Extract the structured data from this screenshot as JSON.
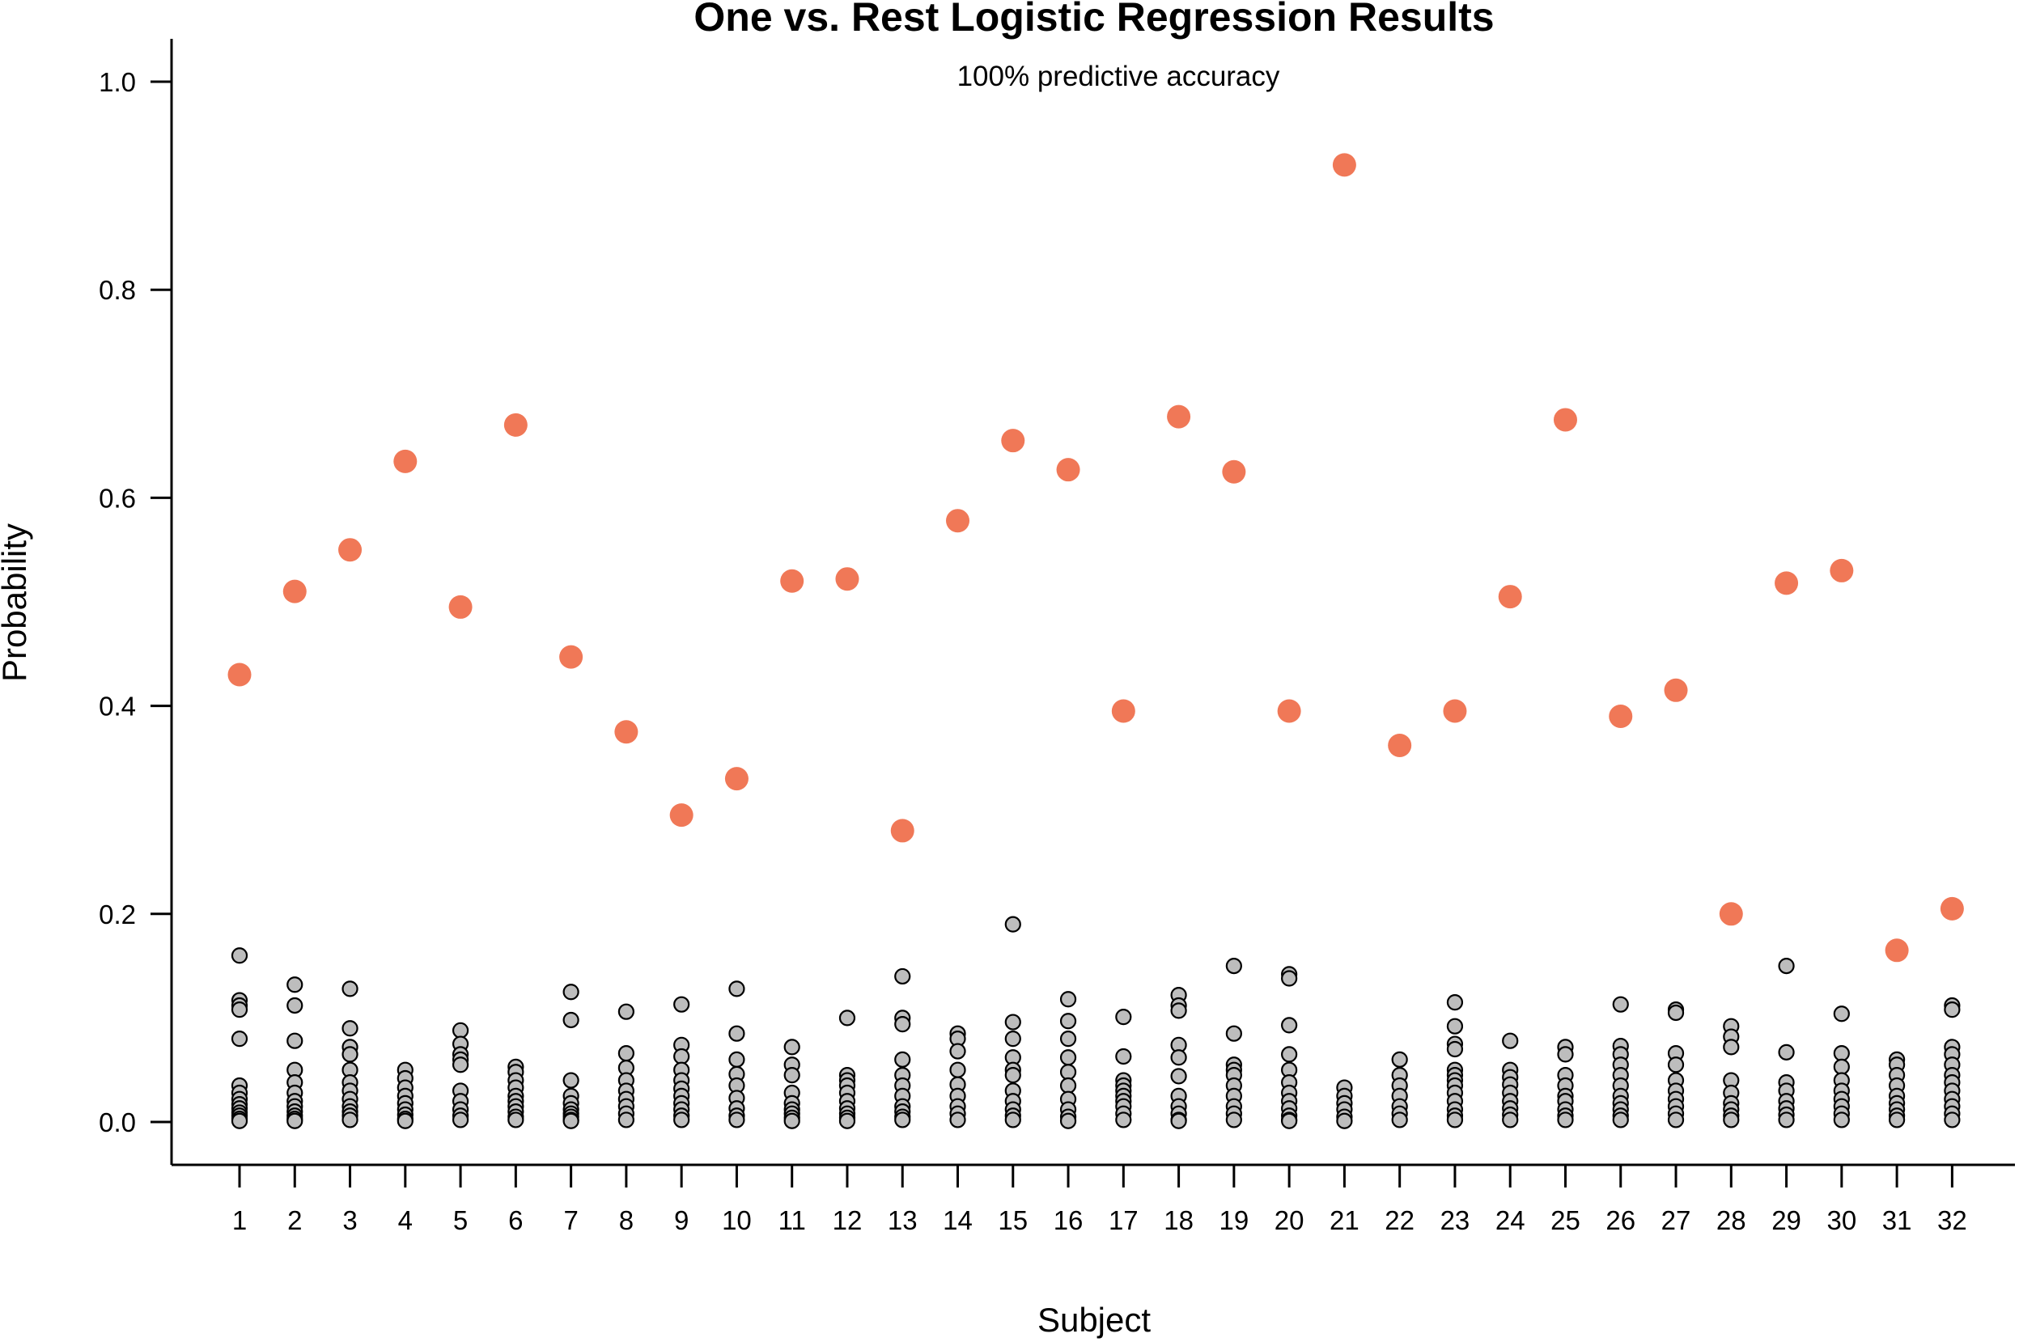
{
  "chart_data": {
    "type": "scatter",
    "title": "One vs. Rest Logistic Regression Results",
    "subtitle": "100% predictive accuracy",
    "xlabel": "Subject",
    "ylabel": "Probability",
    "ylim": [
      0,
      1.0
    ],
    "y_ticks": [
      "0.0",
      "0.2",
      "0.4",
      "0.6",
      "0.8",
      "1.0"
    ],
    "categories": [
      "1",
      "2",
      "3",
      "4",
      "5",
      "6",
      "7",
      "8",
      "9",
      "10",
      "11",
      "12",
      "13",
      "14",
      "15",
      "16",
      "17",
      "18",
      "19",
      "20",
      "21",
      "22",
      "23",
      "24",
      "25",
      "26",
      "27",
      "28",
      "29",
      "30",
      "31",
      "32"
    ],
    "grid": false,
    "legend": "none",
    "colors": {
      "correct_class": "#f07857",
      "other_classes": "#bdbdbd",
      "axis": "#000000"
    },
    "series": [
      {
        "values": [
          0.43,
          0.51,
          0.55,
          0.635,
          0.495,
          0.67,
          0.447,
          0.375,
          0.295,
          0.33,
          0.52,
          0.522,
          0.28,
          0.578,
          0.655,
          0.627,
          0.395,
          0.678,
          0.625,
          0.395,
          0.92,
          0.362,
          0.395,
          0.505,
          0.675,
          0.39,
          0.415,
          0.2,
          0.518,
          0.53,
          0.165,
          0.205
        ]
      },
      {
        "points": [
          [
            0.16,
            0.117,
            0.112,
            0.108,
            0.08,
            0.035,
            0.028,
            0.022,
            0.017,
            0.013,
            0.009,
            0.006,
            0.003,
            0.001
          ],
          [
            0.132,
            0.112,
            0.078,
            0.05,
            0.038,
            0.028,
            0.02,
            0.015,
            0.01,
            0.006,
            0.003,
            0.001
          ],
          [
            0.128,
            0.09,
            0.072,
            0.065,
            0.05,
            0.038,
            0.03,
            0.022,
            0.015,
            0.01,
            0.006,
            0.002
          ],
          [
            0.05,
            0.042,
            0.033,
            0.025,
            0.018,
            0.012,
            0.007,
            0.003,
            0.001
          ],
          [
            0.088,
            0.075,
            0.065,
            0.06,
            0.055,
            0.03,
            0.02,
            0.012,
            0.006,
            0.002
          ],
          [
            0.053,
            0.048,
            0.04,
            0.033,
            0.025,
            0.02,
            0.015,
            0.01,
            0.005,
            0.002
          ],
          [
            0.125,
            0.098,
            0.04,
            0.025,
            0.018,
            0.012,
            0.008,
            0.005,
            0.002,
            0.001
          ],
          [
            0.106,
            0.066,
            0.052,
            0.04,
            0.03,
            0.022,
            0.015,
            0.008,
            0.002
          ],
          [
            0.113,
            0.074,
            0.063,
            0.05,
            0.04,
            0.032,
            0.025,
            0.018,
            0.012,
            0.006,
            0.002
          ],
          [
            0.128,
            0.085,
            0.06,
            0.046,
            0.035,
            0.023,
            0.013,
            0.006,
            0.002
          ],
          [
            0.072,
            0.055,
            0.045,
            0.028,
            0.018,
            0.012,
            0.008,
            0.004,
            0.001
          ],
          [
            0.1,
            0.045,
            0.04,
            0.035,
            0.028,
            0.02,
            0.013,
            0.008,
            0.004,
            0.001
          ],
          [
            0.14,
            0.1,
            0.094,
            0.06,
            0.045,
            0.035,
            0.025,
            0.015,
            0.01,
            0.005,
            0.002
          ],
          [
            0.085,
            0.08,
            0.068,
            0.05,
            0.036,
            0.025,
            0.015,
            0.008,
            0.002
          ],
          [
            0.19,
            0.096,
            0.08,
            0.062,
            0.05,
            0.045,
            0.03,
            0.02,
            0.012,
            0.006,
            0.002
          ],
          [
            0.118,
            0.097,
            0.08,
            0.062,
            0.048,
            0.035,
            0.022,
            0.012,
            0.005,
            0.001
          ],
          [
            0.101,
            0.063,
            0.04,
            0.035,
            0.03,
            0.025,
            0.02,
            0.015,
            0.008,
            0.002
          ],
          [
            0.122,
            0.112,
            0.107,
            0.074,
            0.062,
            0.044,
            0.025,
            0.015,
            0.008,
            0.002,
            0.001
          ],
          [
            0.15,
            0.085,
            0.055,
            0.05,
            0.045,
            0.035,
            0.025,
            0.015,
            0.008,
            0.002
          ],
          [
            0.142,
            0.138,
            0.093,
            0.065,
            0.05,
            0.038,
            0.028,
            0.02,
            0.013,
            0.006,
            0.002,
            0.001
          ],
          [
            0.033,
            0.025,
            0.018,
            0.012,
            0.005,
            0.001
          ],
          [
            0.06,
            0.045,
            0.035,
            0.025,
            0.015,
            0.008,
            0.002
          ],
          [
            0.115,
            0.092,
            0.075,
            0.07,
            0.05,
            0.045,
            0.04,
            0.035,
            0.028,
            0.02,
            0.012,
            0.006,
            0.002
          ],
          [
            0.078,
            0.05,
            0.043,
            0.036,
            0.028,
            0.02,
            0.013,
            0.007,
            0.002
          ],
          [
            0.072,
            0.065,
            0.045,
            0.035,
            0.025,
            0.02,
            0.012,
            0.006,
            0.002
          ],
          [
            0.113,
            0.073,
            0.065,
            0.055,
            0.045,
            0.035,
            0.025,
            0.018,
            0.012,
            0.006,
            0.002
          ],
          [
            0.108,
            0.105,
            0.066,
            0.055,
            0.04,
            0.03,
            0.022,
            0.015,
            0.008,
            0.002
          ],
          [
            0.092,
            0.082,
            0.072,
            0.04,
            0.028,
            0.018,
            0.012,
            0.006,
            0.002
          ],
          [
            0.15,
            0.067,
            0.038,
            0.03,
            0.02,
            0.013,
            0.007,
            0.002
          ],
          [
            0.104,
            0.066,
            0.053,
            0.04,
            0.03,
            0.022,
            0.015,
            0.008,
            0.002
          ],
          [
            0.06,
            0.055,
            0.045,
            0.035,
            0.025,
            0.018,
            0.012,
            0.006,
            0.002
          ],
          [
            0.112,
            0.108,
            0.072,
            0.065,
            0.055,
            0.045,
            0.038,
            0.03,
            0.022,
            0.015,
            0.008,
            0.002
          ]
        ]
      }
    ]
  }
}
